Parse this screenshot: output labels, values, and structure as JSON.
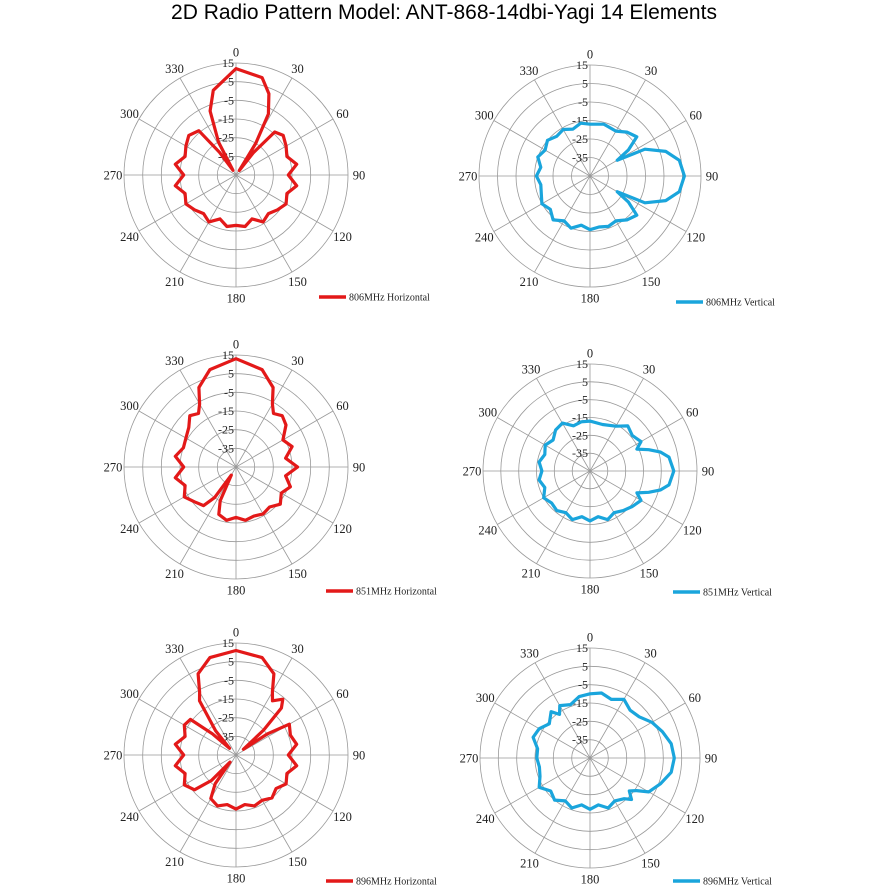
{
  "title": "2D Radio Pattern Model: ANT-868-14dbi-Yagi  14 Elements",
  "colors": {
    "horizontal": "#e31919",
    "vertical": "#1aa5dc",
    "grid": "#999999"
  },
  "chart_data": [
    {
      "type": "polar",
      "series_name": "806MHz Horizontal",
      "r_ticks": [
        15,
        5,
        -5,
        -15,
        -25,
        -35
      ],
      "r_range": [
        -45,
        15
      ],
      "theta_ticks": [
        0,
        30,
        60,
        90,
        120,
        150,
        180,
        210,
        240,
        270,
        300,
        330
      ],
      "theta_deg": [
        0,
        15,
        22,
        28,
        32,
        36,
        38,
        42,
        50,
        60,
        70,
        80,
        90,
        100,
        110,
        120,
        130,
        140,
        150,
        160,
        170,
        180,
        190,
        200,
        210,
        220,
        230,
        240,
        250,
        260,
        270,
        280,
        290,
        300,
        310,
        320,
        324,
        328,
        332,
        338,
        345,
        360
      ],
      "gain_db": [
        12,
        9,
        2,
        -8,
        -25,
        -42,
        -30,
        -14,
        -12,
        -14,
        -16,
        -12,
        -17,
        -12,
        -16,
        -14,
        -16,
        -18,
        -16,
        -20,
        -17,
        -18,
        -17,
        -20,
        -16,
        -18,
        -16,
        -14,
        -16,
        -12,
        -17,
        -12,
        -16,
        -14,
        -12,
        -14,
        -30,
        -42,
        -25,
        -8,
        2,
        12
      ]
    },
    {
      "type": "polar",
      "series_name": "806MHz Vertical",
      "r_ticks": [
        15,
        5,
        -5,
        -15,
        -25,
        -35
      ],
      "r_range": [
        -45,
        15
      ],
      "theta_ticks": [
        0,
        30,
        60,
        90,
        120,
        150,
        180,
        210,
        240,
        270,
        300,
        330
      ],
      "theta_deg": [
        0,
        15,
        30,
        40,
        50,
        56,
        60,
        64,
        72,
        80,
        90,
        100,
        108,
        116,
        120,
        124,
        130,
        140,
        150,
        160,
        170,
        180,
        190,
        200,
        210,
        220,
        230,
        240,
        250,
        260,
        270,
        280,
        290,
        300,
        310,
        320,
        330,
        340,
        350,
        360
      ],
      "gain_db": [
        -17,
        -16,
        -17,
        -14,
        -12,
        -20,
        -28,
        -12,
        -2,
        4,
        6,
        4,
        -2,
        -12,
        -28,
        -20,
        -12,
        -14,
        -17,
        -16,
        -17,
        -16,
        -18,
        -15,
        -17,
        -14,
        -17,
        -15,
        -17,
        -18,
        -16,
        -18,
        -15,
        -17,
        -15,
        -17,
        -16,
        -18,
        -16,
        -17
      ]
    },
    {
      "type": "polar",
      "series_name": "851MHz Horizontal",
      "r_ticks": [
        15,
        5,
        -5,
        -15,
        -25,
        -35
      ],
      "r_range": [
        -45,
        15
      ],
      "theta_ticks": [
        0,
        30,
        60,
        90,
        120,
        150,
        180,
        210,
        240,
        270,
        300,
        330
      ],
      "theta_deg": [
        0,
        15,
        25,
        30,
        35,
        42,
        50,
        60,
        70,
        80,
        90,
        100,
        110,
        120,
        130,
        140,
        150,
        160,
        170,
        180,
        190,
        200,
        205,
        210,
        215,
        220,
        230,
        240,
        250,
        260,
        270,
        280,
        290,
        300,
        310,
        318,
        325,
        330,
        335,
        345,
        360
      ],
      "gain_db": [
        13,
        9,
        2,
        -6,
        -10,
        -8,
        -10,
        -16,
        -13,
        -18,
        -12,
        -18,
        -14,
        -17,
        -14,
        -17,
        -16,
        -17,
        -16,
        -18,
        -16,
        -18,
        -25,
        -40,
        -25,
        -18,
        -16,
        -13,
        -16,
        -12,
        -17,
        -12,
        -15,
        -14,
        -12,
        -8,
        -10,
        -6,
        2,
        9,
        13
      ]
    },
    {
      "type": "polar",
      "series_name": "851MHz Vertical",
      "r_ticks": [
        15,
        5,
        -5,
        -15,
        -25,
        -35
      ],
      "r_range": [
        -45,
        15
      ],
      "theta_ticks": [
        0,
        30,
        60,
        90,
        120,
        150,
        180,
        210,
        240,
        270,
        300,
        330
      ],
      "theta_deg": [
        0,
        15,
        30,
        40,
        50,
        60,
        65,
        70,
        75,
        80,
        90,
        100,
        105,
        110,
        115,
        120,
        130,
        140,
        150,
        160,
        170,
        180,
        190,
        200,
        210,
        220,
        230,
        240,
        250,
        260,
        270,
        280,
        290,
        300,
        310,
        320,
        330,
        340,
        350,
        360
      ],
      "gain_db": [
        -17,
        -18,
        -16,
        -12,
        -14,
        -12,
        -16,
        -10,
        -4,
        0,
        2,
        0,
        -4,
        -10,
        -16,
        -12,
        -14,
        -16,
        -18,
        -16,
        -19,
        -17,
        -19,
        -16,
        -18,
        -16,
        -17,
        -15,
        -18,
        -16,
        -18,
        -16,
        -18,
        -16,
        -18,
        -15,
        -14,
        -18,
        -17,
        -17
      ]
    },
    {
      "type": "polar",
      "series_name": "896MHz Horizontal",
      "r_ticks": [
        15,
        5,
        -5,
        -15,
        -25,
        -35
      ],
      "r_range": [
        -45,
        15
      ],
      "theta_ticks": [
        0,
        30,
        60,
        90,
        120,
        150,
        180,
        210,
        240,
        270,
        300,
        330
      ],
      "theta_deg": [
        0,
        15,
        25,
        30,
        34,
        40,
        44,
        48,
        52,
        56,
        60,
        70,
        80,
        90,
        100,
        110,
        120,
        130,
        140,
        150,
        160,
        170,
        180,
        190,
        200,
        210,
        216,
        220,
        224,
        230,
        240,
        250,
        260,
        270,
        280,
        290,
        300,
        308,
        312,
        316,
        320,
        326,
        330,
        335,
        345,
        360
      ],
      "gain_db": [
        11,
        9,
        3,
        -6,
        -10,
        -6,
        -10,
        -25,
        -40,
        -25,
        -12,
        -14,
        -12,
        -17,
        -12,
        -16,
        -14,
        -17,
        -15,
        -17,
        -16,
        -18,
        -16,
        -18,
        -16,
        -18,
        -26,
        -40,
        -26,
        -16,
        -13,
        -16,
        -12,
        -17,
        -12,
        -16,
        -13,
        -14,
        -28,
        -40,
        -28,
        -10,
        -6,
        3,
        9,
        11
      ]
    },
    {
      "type": "polar",
      "series_name": "896MHz Vertical",
      "r_ticks": [
        15,
        5,
        -5,
        -15,
        -25,
        -35
      ],
      "r_range": [
        -45,
        15
      ],
      "theta_ticks": [
        0,
        30,
        60,
        90,
        120,
        150,
        180,
        210,
        240,
        270,
        300,
        330
      ],
      "theta_deg": [
        0,
        10,
        20,
        30,
        40,
        50,
        60,
        70,
        80,
        90,
        100,
        110,
        120,
        125,
        130,
        135,
        140,
        150,
        160,
        170,
        180,
        190,
        200,
        210,
        220,
        230,
        240,
        250,
        260,
        270,
        280,
        290,
        300,
        310,
        320,
        325,
        330,
        340,
        350,
        360
      ],
      "gain_db": [
        -10,
        -9,
        -11,
        -8,
        -11,
        -10,
        -6,
        -3,
        0,
        1,
        0,
        -4,
        -8,
        -14,
        -17,
        -13,
        -16,
        -18,
        -16,
        -19,
        -17,
        -19,
        -16,
        -18,
        -15,
        -17,
        -13,
        -16,
        -17,
        -16,
        -16,
        -12,
        -13,
        -16,
        -12,
        -16,
        -12,
        -14,
        -11,
        -10
      ]
    }
  ]
}
